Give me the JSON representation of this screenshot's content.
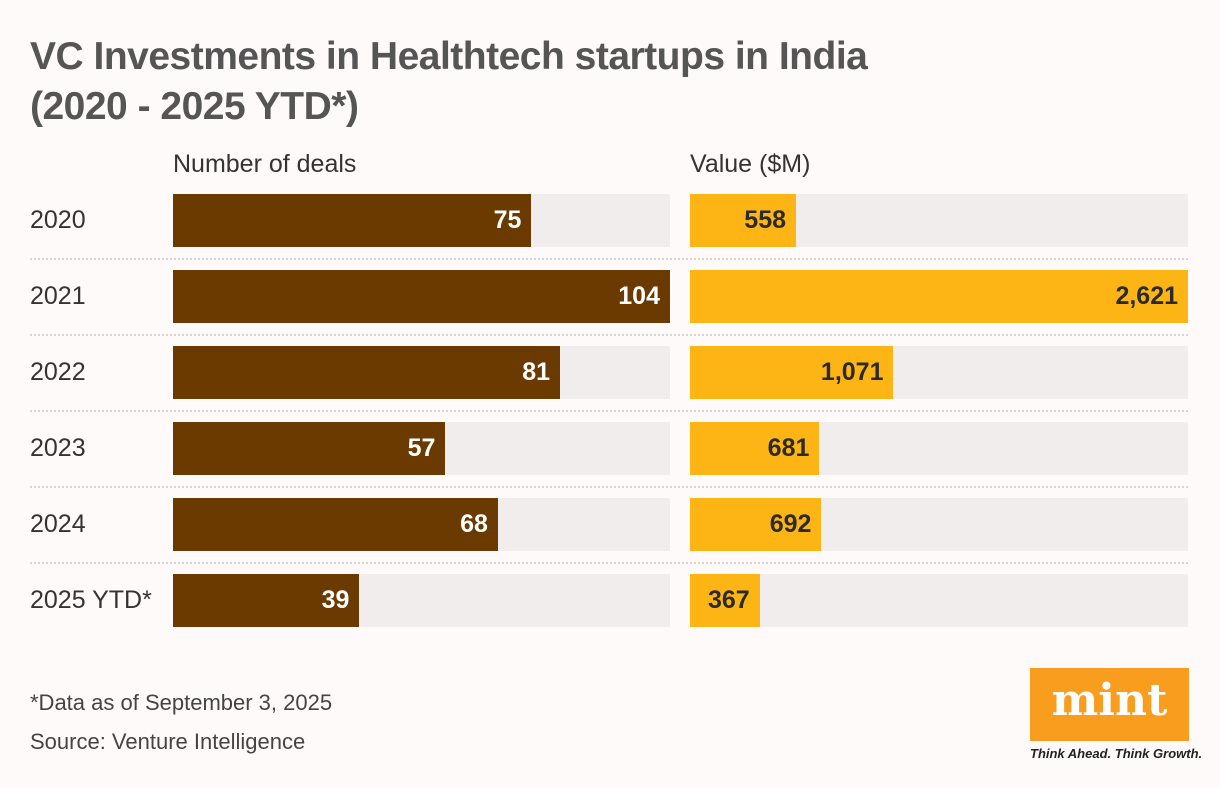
{
  "chart_data": {
    "type": "bar",
    "title": "VC Investments in Healthtech startups in India (2020 - 2025 YTD*)",
    "title_lines": [
      "VC Investments in Healthtech startups in India",
      "(2020 - 2025 YTD*)"
    ],
    "categories": [
      "2020",
      "2021",
      "2022",
      "2023",
      "2024",
      "2025 YTD*"
    ],
    "series": [
      {
        "name": "Number of deals",
        "values": [
          75,
          104,
          81,
          57,
          68,
          39
        ],
        "labels": [
          "75",
          "104",
          "81",
          "57",
          "68",
          "39"
        ],
        "color": "#6b3a00",
        "label_color": "#ffffff"
      },
      {
        "name": "Value ($M)",
        "values": [
          558,
          2621,
          1071,
          681,
          692,
          367
        ],
        "labels": [
          "558",
          "2,621",
          "1,071",
          "681",
          "692",
          "367"
        ],
        "color": "#fdb515",
        "label_color": "#2b2b2b"
      }
    ],
    "orientation": "horizontal",
    "track_color": "#f1eded"
  },
  "footer": {
    "note": "*Data as of September 3, 2025",
    "source": "Source: Venture Intelligence"
  },
  "logo": {
    "text": "mint",
    "tagline": "Think Ahead. Think Growth.",
    "color": "#f89d1e"
  }
}
